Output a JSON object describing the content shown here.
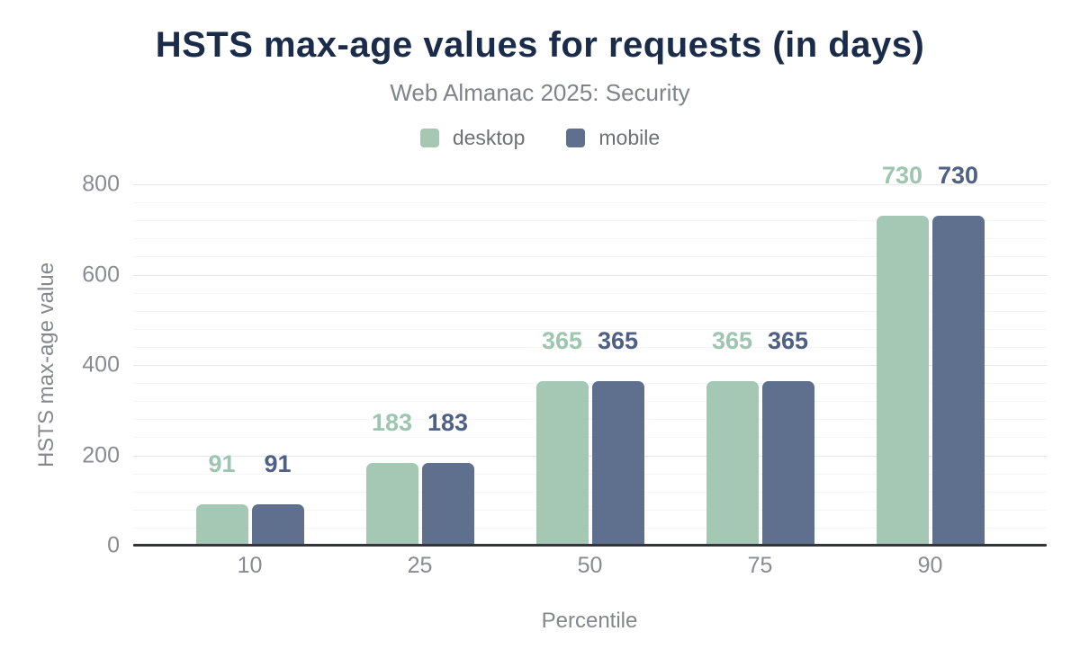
{
  "chart_data": {
    "type": "bar",
    "title": "HSTS max-age values for requests (in days)",
    "subtitle": "Web Almanac 2025: Security",
    "xlabel": "Percentile",
    "ylabel": "HSTS max-age value",
    "categories": [
      "10",
      "25",
      "50",
      "75",
      "90"
    ],
    "series": [
      {
        "name": "desktop",
        "color": "#a5c8b5",
        "label_color": "#9ec5b0",
        "values": [
          91,
          183,
          365,
          365,
          730
        ]
      },
      {
        "name": "mobile",
        "color": "#5f708e",
        "label_color": "#4e6185",
        "values": [
          91,
          183,
          365,
          365,
          730
        ]
      }
    ],
    "ylim": [
      0,
      800
    ],
    "y_ticks": [
      0,
      200,
      400,
      600,
      800
    ],
    "y_minor_step": 40,
    "grid": "horizontal-only",
    "legend_position": "top"
  },
  "theme": {
    "background": "#ffffff",
    "title_color": "#1b2b4a",
    "subtitle_color": "#7f848a",
    "axis_text_color": "#898b91",
    "axis_title_color": "#85878d",
    "legend_text_color": "#6e7076",
    "axis_line_color": "#34353b",
    "major_grid_color": "#e6e6e8",
    "minor_grid_color": "#f5f5f6"
  }
}
